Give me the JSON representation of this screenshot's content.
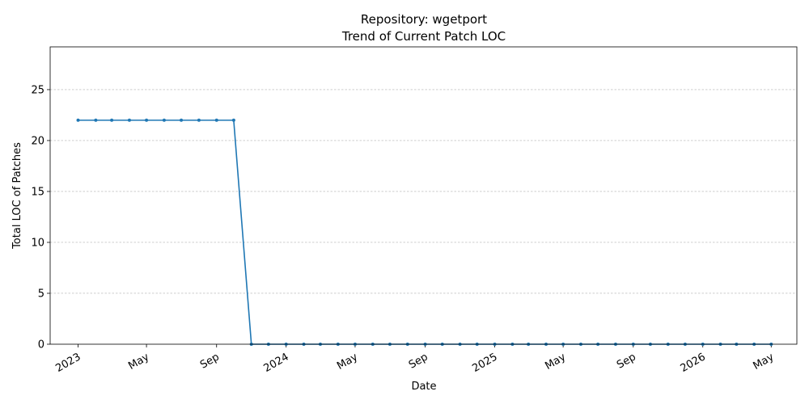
{
  "chart_data": {
    "type": "line",
    "title": "Repository: wgetport",
    "subtitle": "Trend of Current Patch LOC",
    "xlabel": "Date",
    "ylabel": "Total LOC of Patches",
    "ylim": [
      0,
      29.2
    ],
    "yticks": [
      0,
      5,
      10,
      15,
      20,
      25
    ],
    "xlim": [
      "2022-11-13",
      "2026-06-15"
    ],
    "xticks": [
      {
        "date": "2023-01-01",
        "label": "2023"
      },
      {
        "date": "2023-05-01",
        "label": "May"
      },
      {
        "date": "2023-09-01",
        "label": "Sep"
      },
      {
        "date": "2024-01-01",
        "label": "2024"
      },
      {
        "date": "2024-05-01",
        "label": "May"
      },
      {
        "date": "2024-09-01",
        "label": "Sep"
      },
      {
        "date": "2025-01-01",
        "label": "2025"
      },
      {
        "date": "2025-05-01",
        "label": "May"
      },
      {
        "date": "2025-09-01",
        "label": "Sep"
      },
      {
        "date": "2026-01-01",
        "label": "2026"
      },
      {
        "date": "2026-05-01",
        "label": "May"
      }
    ],
    "grid": "y",
    "series": [
      {
        "color": "#1f77b4",
        "x": [
          "2023-01-01",
          "2023-02-01",
          "2023-03-01",
          "2023-04-01",
          "2023-05-01",
          "2023-06-01",
          "2023-07-01",
          "2023-08-01",
          "2023-09-01",
          "2023-10-01",
          "2023-11-01",
          "2023-12-01",
          "2024-01-01",
          "2024-02-01",
          "2024-03-01",
          "2024-04-01",
          "2024-05-01",
          "2024-06-01",
          "2024-07-01",
          "2024-08-01",
          "2024-09-01",
          "2024-10-01",
          "2024-11-01",
          "2024-12-01",
          "2025-01-01",
          "2025-02-01",
          "2025-03-01",
          "2025-04-01",
          "2025-05-01",
          "2025-06-01",
          "2025-07-01",
          "2025-08-01",
          "2025-09-01",
          "2025-10-01",
          "2025-11-01",
          "2025-12-01",
          "2026-01-01",
          "2026-02-01",
          "2026-03-01",
          "2026-04-01",
          "2026-05-01"
        ],
        "y": [
          22,
          22,
          22,
          22,
          22,
          22,
          22,
          22,
          22,
          22,
          0,
          0,
          0,
          0,
          0,
          0,
          0,
          0,
          0,
          0,
          0,
          0,
          0,
          0,
          0,
          0,
          0,
          0,
          0,
          0,
          0,
          0,
          0,
          0,
          0,
          0,
          0,
          0,
          0,
          0,
          0
        ]
      }
    ]
  }
}
